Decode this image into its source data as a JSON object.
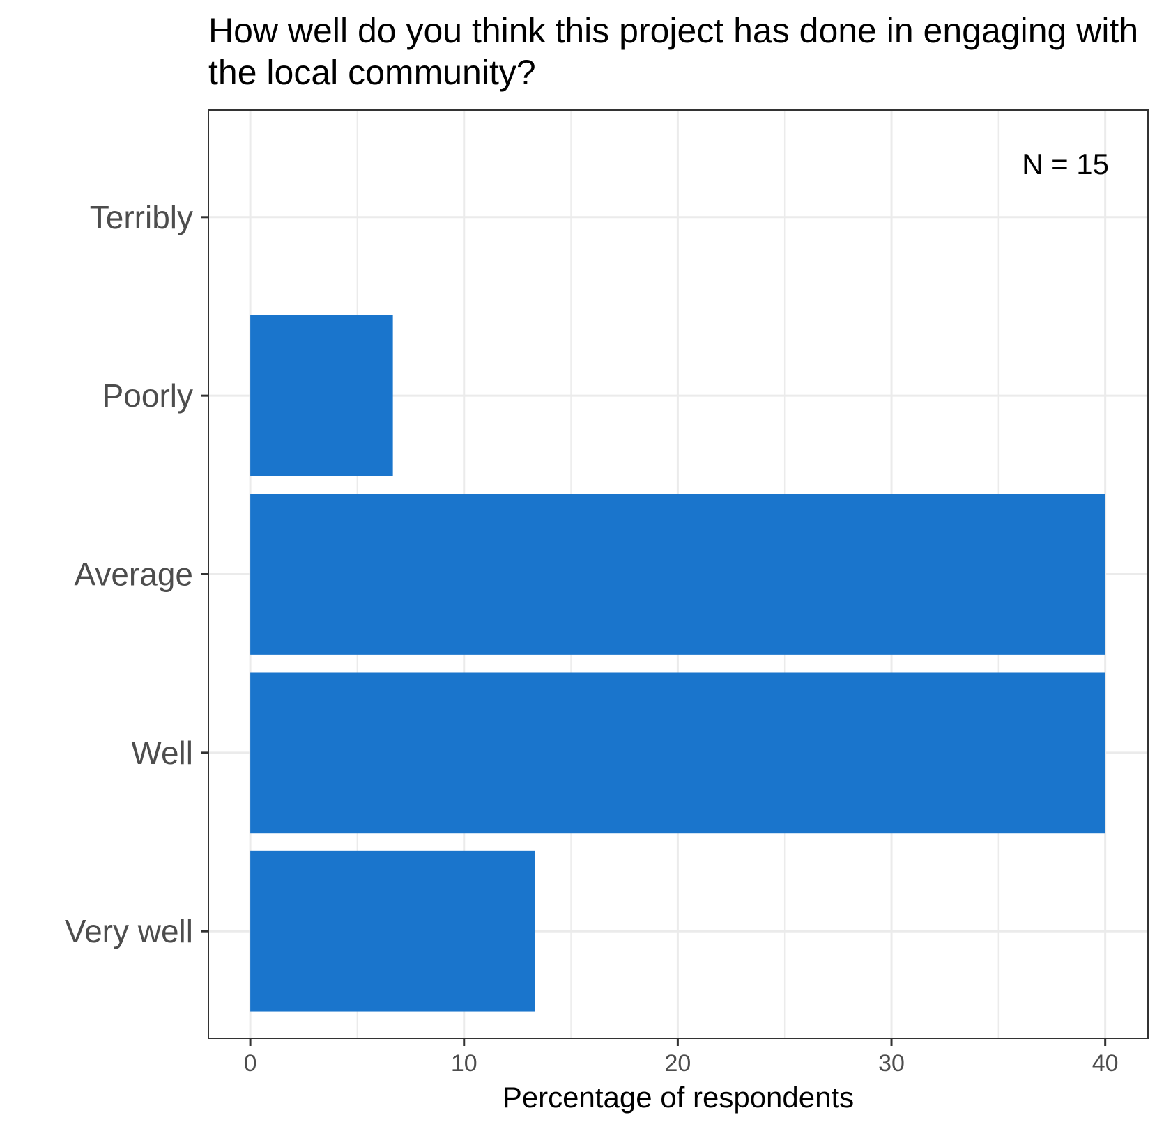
{
  "chart_data": {
    "type": "bar",
    "orientation": "horizontal",
    "title_lines": [
      "How well do you think this project has done in engaging with",
      "the local community?"
    ],
    "categories": [
      "Terribly",
      "Poorly",
      "Average",
      "Well",
      "Very well"
    ],
    "values": [
      0,
      6.67,
      40,
      40,
      13.33
    ],
    "xlabel": "Percentage of respondents",
    "ylabel": "",
    "xlim": [
      -1.96,
      42
    ],
    "x_ticks": [
      0,
      10,
      20,
      30,
      40
    ],
    "annotation": "N = 15",
    "bar_color": "#1a75cc",
    "grid": true,
    "legend": "none"
  }
}
